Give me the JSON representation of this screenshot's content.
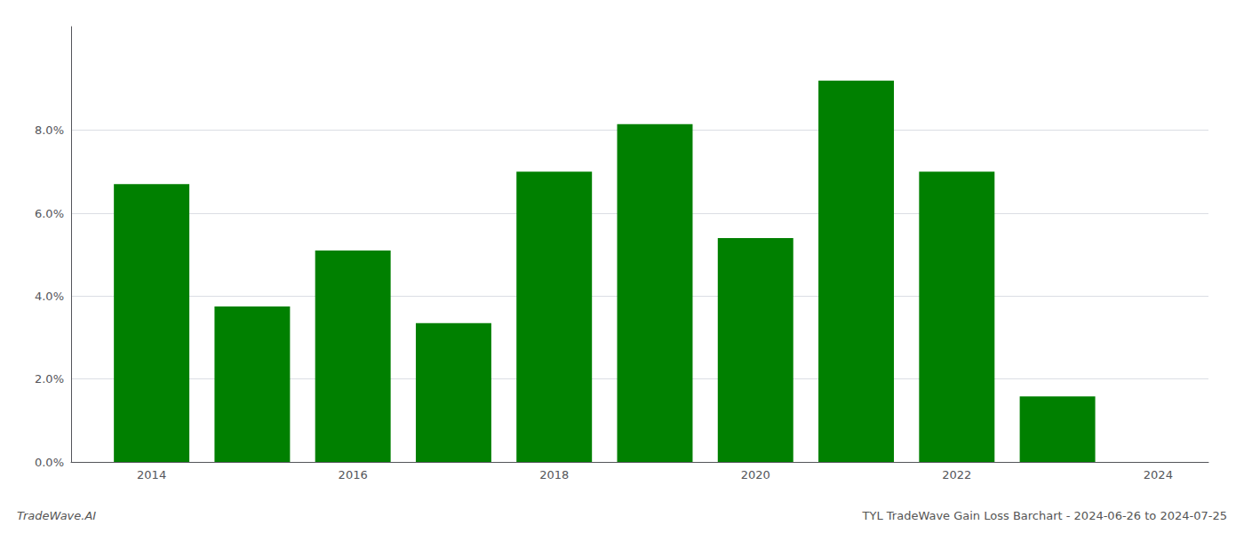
{
  "chart_data": {
    "type": "bar",
    "title": "TYL TradeWave Gain Loss Barchart - 2024-06-26 to 2024-07-25",
    "annotations": [
      "TradeWave.AI"
    ],
    "x": [
      2014,
      2015,
      2016,
      2017,
      2018,
      2019,
      2020,
      2021,
      2022,
      2023
    ],
    "values": [
      0.067,
      0.0375,
      0.051,
      0.0335,
      0.07,
      0.0815,
      0.054,
      0.092,
      0.07,
      0.0158
    ],
    "color": "#008000",
    "xlim": [
      2013.2,
      2024.5
    ],
    "xticks": [
      2014,
      2016,
      2018,
      2020,
      2022,
      2024
    ],
    "ylim": [
      0,
      0.105
    ],
    "yticks": [
      {
        "value": 0.0,
        "label": "0.0%"
      },
      {
        "value": 0.02,
        "label": "2.0%"
      },
      {
        "value": 0.04,
        "label": "4.0%"
      },
      {
        "value": 0.06,
        "label": "6.0%"
      },
      {
        "value": 0.08,
        "label": "8.0%"
      }
    ],
    "grid": true
  }
}
